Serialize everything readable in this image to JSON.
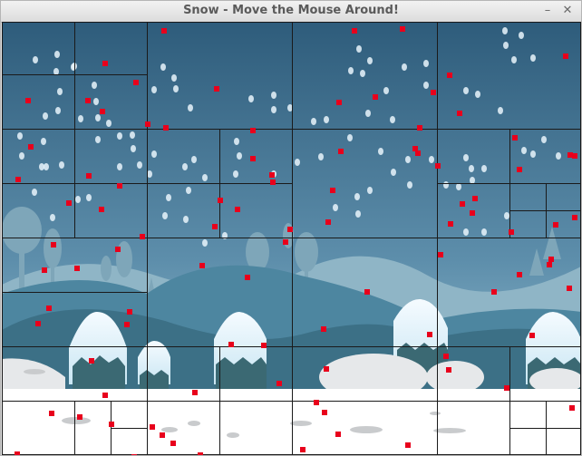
{
  "window": {
    "title": "Snow - Move the Mouse Around!",
    "minimize_glyph": "–",
    "close_glyph": "✕"
  },
  "scene": {
    "sky_top_color": "#2f5f7e",
    "sky_bottom_color": "#9cc4d6",
    "hill_color": "#3f7890",
    "snow_color": "#ffffff",
    "particle_color": "#e8001c",
    "flake_color": "#e9f4fb",
    "grid_line_color": "#1a1a1a"
  }
}
